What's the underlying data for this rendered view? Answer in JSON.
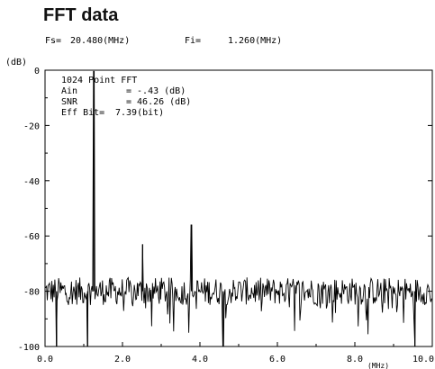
{
  "title": "FFT data",
  "params": {
    "fs_label": "Fs=",
    "fs_value": "20.480(MHz)",
    "fi_label": "Fi=",
    "fi_value": "1.260(MHz)"
  },
  "stats": {
    "points": "1024 Point FFT",
    "ain_label": "Ain",
    "ain_value": "= -.43 (dB)",
    "snr_label": "SNR",
    "snr_value": "= 46.26 (dB)",
    "eff_label": "Eff Bit=",
    "eff_value": "7.39(bit)"
  },
  "chart_data": {
    "type": "line",
    "title": "FFT data",
    "xlabel": "(MHz)",
    "ylabel": "(dB)",
    "xlim": [
      0,
      10
    ],
    "ylim": [
      -100,
      0
    ],
    "x_ticks": [
      "0.0",
      "2.0",
      "4.0",
      "6.0",
      "8.0",
      "10.0"
    ],
    "y_ticks": [
      "0",
      "-20",
      "-40",
      "-60",
      "-80",
      "-100"
    ],
    "noise_floor_db": -80,
    "series": [
      {
        "peaks": [
          {
            "x": 1.26,
            "y": -0.43
          },
          {
            "x": 1.1,
            "y": -100
          },
          {
            "x": 0.3,
            "y": -100
          },
          {
            "x": 2.52,
            "y": -63
          },
          {
            "x": 3.78,
            "y": -56
          },
          {
            "x": 4.6,
            "y": -100
          },
          {
            "x": 9.55,
            "y": -100
          }
        ]
      }
    ]
  }
}
